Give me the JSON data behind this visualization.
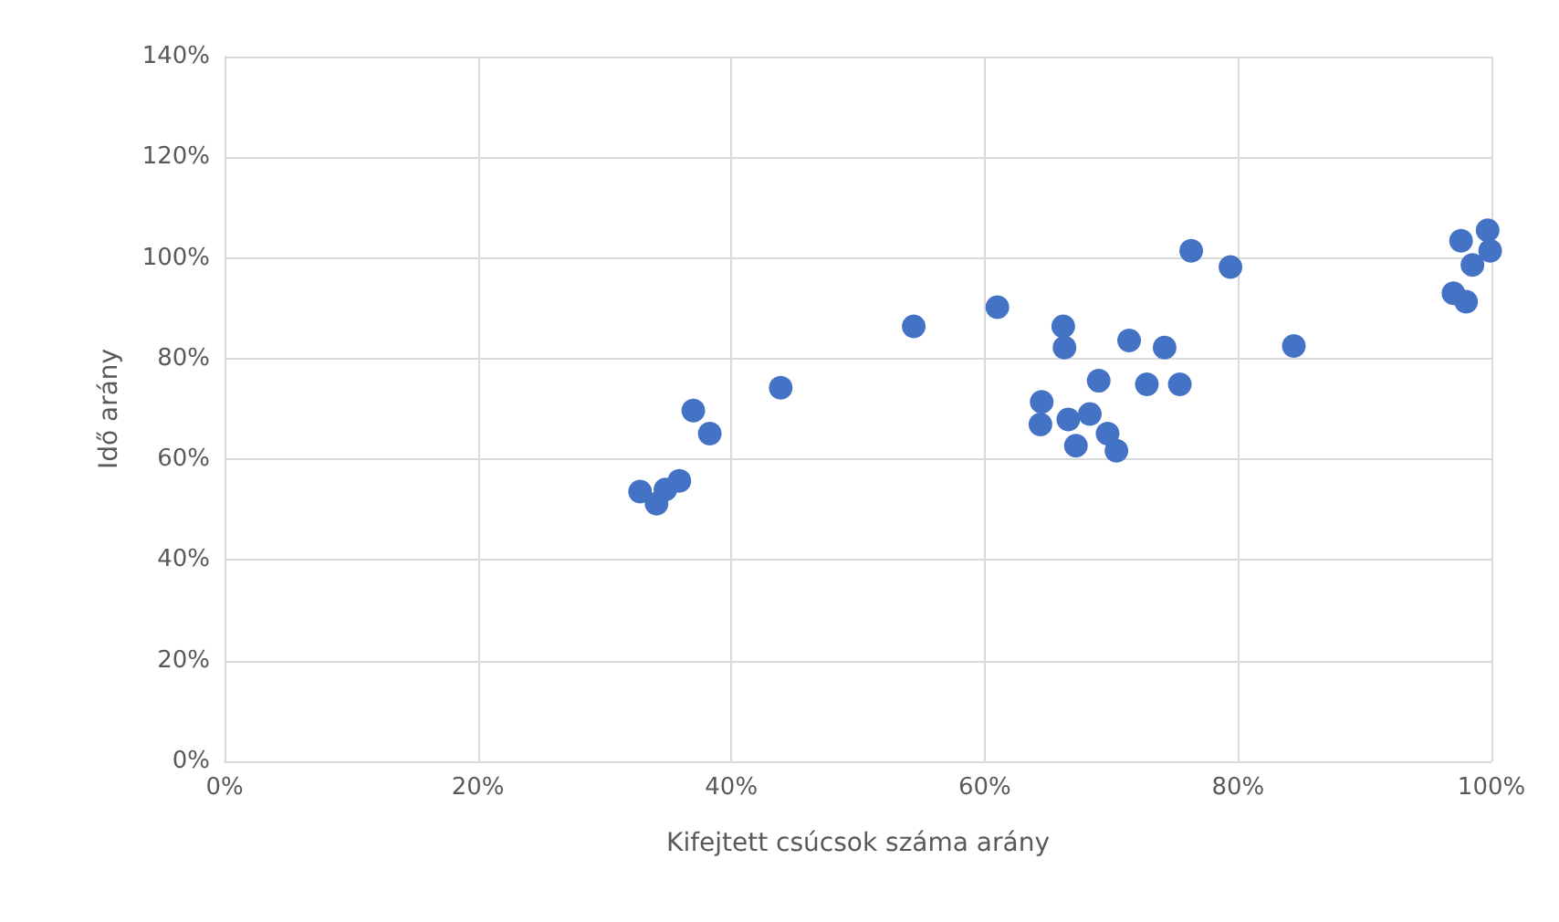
{
  "chart_data": {
    "type": "scatter",
    "xlabel": "Kifejtett csúcsok száma arány",
    "ylabel": "Idő arány",
    "x": [
      32.8,
      34.1,
      34.8,
      35.9,
      37.0,
      38.3,
      43.9,
      54.4,
      61.0,
      66.2,
      66.3,
      64.5,
      64.4,
      66.6,
      68.3,
      67.2,
      69.7,
      70.4,
      69.0,
      72.8,
      75.4,
      71.4,
      74.2,
      76.3,
      79.4,
      84.4,
      97.6,
      99.7,
      99.9,
      98.5,
      97.0,
      98.0
    ],
    "series": [
      {
        "color": "#4472c4",
        "values": [
          53.6,
          51.2,
          54.0,
          55.7,
          69.7,
          65.1,
          74.2,
          86.4,
          90.2,
          86.4,
          82.2,
          71.4,
          66.9,
          67.9,
          69.0,
          62.7,
          65.1,
          61.7,
          75.6,
          74.9,
          74.9,
          83.6,
          82.2,
          101.4,
          98.2,
          82.5,
          103.4,
          105.5,
          101.4,
          98.6,
          93.0,
          91.3
        ]
      }
    ],
    "xlim": [
      0,
      100
    ],
    "ylim": [
      0,
      140
    ],
    "xticks": [
      {
        "value": 0,
        "label": "0%"
      },
      {
        "value": 20,
        "label": "20%"
      },
      {
        "value": 40,
        "label": "40%"
      },
      {
        "value": 60,
        "label": "60%"
      },
      {
        "value": 80,
        "label": "80%"
      },
      {
        "value": 100,
        "label": "100%"
      }
    ],
    "yticks": [
      {
        "value": 0,
        "label": "0%"
      },
      {
        "value": 20,
        "label": "20%"
      },
      {
        "value": 40,
        "label": "40%"
      },
      {
        "value": 60,
        "label": "60%"
      },
      {
        "value": 80,
        "label": "80%"
      },
      {
        "value": 100,
        "label": "100%"
      },
      {
        "value": 120,
        "label": "120%"
      },
      {
        "value": 140,
        "label": "140%"
      }
    ],
    "grid": true,
    "marker": "circle"
  }
}
